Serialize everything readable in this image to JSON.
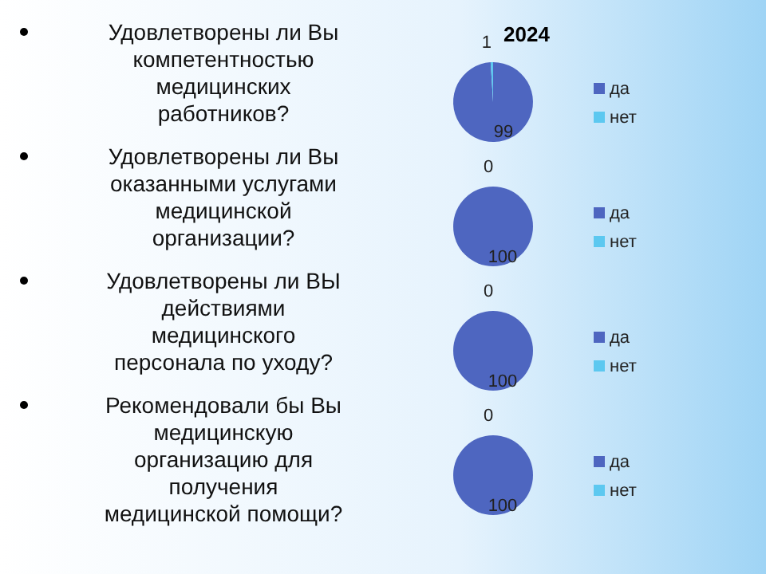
{
  "chart_data": [
    {
      "type": "pie",
      "title": "2024",
      "annotations": [
        "Удовлетворены ли Вы компетентностью медицинских работников?"
      ],
      "categories": [
        "да",
        "нет"
      ],
      "values": [
        99,
        1
      ],
      "value_labels": [
        "99",
        "1"
      ],
      "colors": [
        "#4e66c0",
        "#5cc8f0"
      ],
      "legend": "right"
    },
    {
      "type": "pie",
      "annotations": [
        "Удовлетворены ли Вы оказанными услугами медицинской организации?"
      ],
      "categories": [
        "да",
        "нет"
      ],
      "values": [
        100,
        0
      ],
      "value_labels": [
        "100",
        "0"
      ],
      "colors": [
        "#4e66c0",
        "#5cc8f0"
      ],
      "legend": "right"
    },
    {
      "type": "pie",
      "annotations": [
        "Удовлетворены ли ВЫ действиями медицинского персонала по уходу?"
      ],
      "categories": [
        "да",
        "нет"
      ],
      "values": [
        100,
        0
      ],
      "value_labels": [
        "100",
        "0"
      ],
      "colors": [
        "#4e66c0",
        "#5cc8f0"
      ],
      "legend": "right"
    },
    {
      "type": "pie",
      "annotations": [
        "Рекомендовали бы Вы медицинскую организацию для получения медицинской помощи?"
      ],
      "categories": [
        "да",
        "нет"
      ],
      "values": [
        100,
        0
      ],
      "value_labels": [
        "100",
        "0"
      ],
      "colors": [
        "#4e66c0",
        "#5cc8f0"
      ],
      "legend": "right"
    }
  ]
}
